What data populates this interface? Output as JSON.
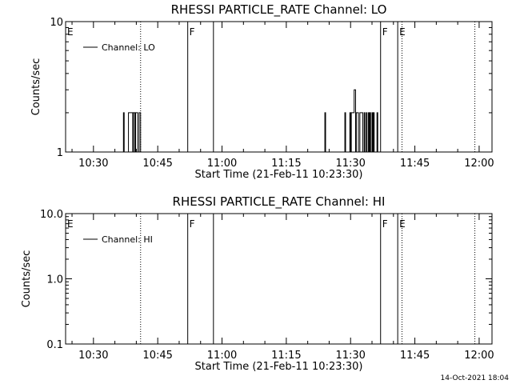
{
  "chart_data": [
    {
      "type": "line",
      "title": "RHESSI PARTICLE_RATE Channel: LO",
      "xlabel": "Start Time (21-Feb-11 10:23:30)",
      "ylabel": "Counts/sec",
      "y_scale": "log",
      "ylim": [
        1,
        10
      ],
      "y_ticks": [
        "1",
        "10"
      ],
      "x_ticks": [
        "10:30",
        "10:45",
        "11:00",
        "11:15",
        "11:30",
        "11:45",
        "12:00"
      ],
      "legend": "Channel: LO",
      "legend_position": "top-left",
      "grid": false,
      "markers": [
        {
          "label": "E",
          "time": "10:23:30",
          "style": "solid"
        },
        {
          "label": "F",
          "time": "10:52",
          "style": "solid"
        },
        {
          "label": "",
          "time": "10:58",
          "style": "solid"
        },
        {
          "label": "F",
          "time": "11:37",
          "style": "solid"
        },
        {
          "label": "E",
          "time": "11:41",
          "style": "solid"
        },
        {
          "label": "",
          "time": "10:41",
          "style": "dotted"
        },
        {
          "label": "",
          "time": "11:42",
          "style": "dotted"
        },
        {
          "label": "",
          "time": "11:59",
          "style": "dotted"
        }
      ],
      "series": [
        {
          "name": "Channel: LO",
          "x": [
            "10:36:50",
            "10:37:00",
            "10:37:10",
            "10:37:50",
            "10:38:10",
            "10:38:30",
            "10:38:50",
            "10:39:10",
            "10:39:20",
            "10:39:40",
            "10:39:50",
            "10:40:10",
            "10:40:20",
            "10:40:40",
            "10:40:50",
            "10:41:00",
            "10:41:10",
            "11:23:50",
            "11:24:00",
            "11:24:10",
            "11:28:30",
            "11:28:40",
            "11:28:50",
            "11:29:40",
            "11:29:50",
            "11:30:00",
            "11:30:10",
            "11:30:40",
            "11:30:50",
            "11:31:10",
            "11:31:20",
            "11:31:40",
            "11:31:50",
            "11:32:10",
            "11:32:20",
            "11:32:40",
            "11:32:50",
            "11:33:10",
            "11:33:20",
            "11:33:40",
            "11:33:50",
            "11:34:10",
            "11:34:20",
            "11:34:30",
            "11:34:40",
            "11:35:00",
            "11:35:10",
            "11:35:20",
            "11:35:30",
            "11:36:00",
            "11:36:10",
            "11:36:20"
          ],
          "y": [
            1,
            2,
            1,
            1,
            2,
            2,
            2,
            1,
            2,
            1,
            2,
            2,
            1,
            2,
            2,
            1,
            1,
            1,
            2,
            1,
            1,
            2,
            1,
            1,
            2,
            1,
            2,
            2,
            3,
            1,
            2,
            2,
            1,
            2,
            2,
            2,
            1,
            2,
            1,
            2,
            1,
            2,
            1,
            2,
            1,
            2,
            1,
            2,
            1,
            1,
            2,
            1
          ]
        }
      ]
    },
    {
      "type": "line",
      "title": "RHESSI PARTICLE_RATE Channel: HI",
      "xlabel": "Start Time (21-Feb-11 10:23:30)",
      "ylabel": "Counts/sec",
      "y_scale": "log",
      "ylim": [
        0.1,
        10
      ],
      "y_ticks": [
        "0.1",
        "1.0",
        "10.0"
      ],
      "x_ticks": [
        "10:30",
        "10:45",
        "11:00",
        "11:15",
        "11:30",
        "11:45",
        "12:00"
      ],
      "legend": "Channel: HI",
      "legend_position": "top-left",
      "grid": false,
      "markers": [
        {
          "label": "E",
          "time": "10:23:30",
          "style": "solid"
        },
        {
          "label": "F",
          "time": "10:52",
          "style": "solid"
        },
        {
          "label": "",
          "time": "10:58",
          "style": "solid"
        },
        {
          "label": "F",
          "time": "11:37",
          "style": "solid"
        },
        {
          "label": "E",
          "time": "11:41",
          "style": "solid"
        },
        {
          "label": "",
          "time": "10:41",
          "style": "dotted"
        },
        {
          "label": "",
          "time": "11:42",
          "style": "dotted"
        },
        {
          "label": "",
          "time": "11:59",
          "style": "dotted"
        }
      ],
      "series": [
        {
          "name": "Channel: HI",
          "x": [],
          "y": []
        }
      ]
    }
  ],
  "timestamp": "14-Oct-2021 18:04"
}
